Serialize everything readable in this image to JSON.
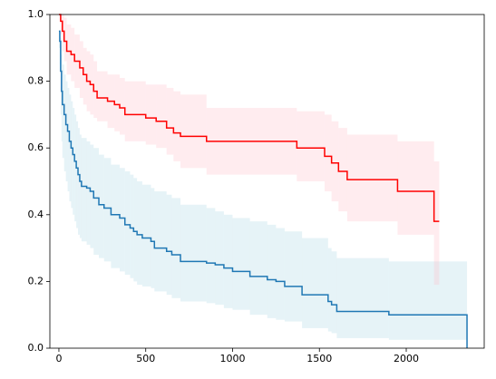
{
  "chart_data": {
    "type": "step",
    "xlim": [
      -52,
      2449
    ],
    "ylim": [
      0,
      1
    ],
    "xticks": [
      0,
      500,
      1000,
      1500,
      2000
    ],
    "yticks": [
      {
        "value": 0,
        "label": "0.0"
      },
      0.2,
      0.4,
      0.6,
      0.8,
      {
        "value": 1,
        "label": "1.0"
      }
    ],
    "series": [
      {
        "color": "#1f77b4",
        "band_color": "#add8e6",
        "x": [
          0,
          5,
          10,
          15,
          20,
          30,
          40,
          50,
          60,
          70,
          80,
          90,
          100,
          110,
          120,
          130,
          160,
          180,
          200,
          230,
          260,
          300,
          350,
          380,
          410,
          430,
          450,
          480,
          530,
          550,
          620,
          650,
          700,
          850,
          900,
          950,
          1000,
          1100,
          1200,
          1250,
          1300,
          1400,
          1550,
          1570,
          1600,
          1900,
          2350
        ],
        "values": [
          0.95,
          0.92,
          0.83,
          0.77,
          0.73,
          0.7,
          0.67,
          0.65,
          0.62,
          0.6,
          0.58,
          0.56,
          0.54,
          0.52,
          0.5,
          0.485,
          0.48,
          0.47,
          0.45,
          0.43,
          0.42,
          0.4,
          0.39,
          0.37,
          0.36,
          0.35,
          0.34,
          0.33,
          0.32,
          0.3,
          0.29,
          0.28,
          0.26,
          0.255,
          0.25,
          0.24,
          0.23,
          0.215,
          0.205,
          0.2,
          0.185,
          0.16,
          0.14,
          0.13,
          0.11,
          0.1,
          0
        ],
        "upper": [
          0.95,
          0.95,
          0.93,
          0.88,
          0.85,
          0.82,
          0.8,
          0.78,
          0.76,
          0.74,
          0.72,
          0.7,
          0.68,
          0.66,
          0.64,
          0.63,
          0.62,
          0.61,
          0.6,
          0.58,
          0.57,
          0.55,
          0.54,
          0.53,
          0.52,
          0.51,
          0.5,
          0.49,
          0.48,
          0.47,
          0.46,
          0.45,
          0.43,
          0.42,
          0.41,
          0.4,
          0.39,
          0.38,
          0.37,
          0.36,
          0.35,
          0.33,
          0.3,
          0.29,
          0.27,
          0.26,
          0.245
        ],
        "lower": [
          0.9,
          0.85,
          0.7,
          0.62,
          0.57,
          0.53,
          0.5,
          0.47,
          0.44,
          0.42,
          0.4,
          0.38,
          0.36,
          0.34,
          0.33,
          0.32,
          0.31,
          0.3,
          0.28,
          0.27,
          0.26,
          0.24,
          0.23,
          0.22,
          0.21,
          0.2,
          0.19,
          0.185,
          0.18,
          0.17,
          0.16,
          0.15,
          0.14,
          0.135,
          0.13,
          0.12,
          0.115,
          0.1,
          0.09,
          0.085,
          0.08,
          0.06,
          0.05,
          0.045,
          0.03,
          0.025,
          0
        ]
      },
      {
        "color": "#ff0000",
        "band_color": "#ffc0cb",
        "x": [
          0,
          10,
          20,
          30,
          45,
          70,
          90,
          120,
          140,
          160,
          180,
          200,
          220,
          280,
          320,
          350,
          380,
          500,
          560,
          620,
          660,
          700,
          850,
          1370,
          1530,
          1570,
          1610,
          1660,
          1950,
          2160,
          2190
        ],
        "values": [
          1.0,
          0.98,
          0.95,
          0.92,
          0.89,
          0.88,
          0.86,
          0.84,
          0.82,
          0.8,
          0.79,
          0.77,
          0.75,
          0.74,
          0.73,
          0.72,
          0.7,
          0.69,
          0.68,
          0.66,
          0.645,
          0.635,
          0.62,
          0.6,
          0.575,
          0.555,
          0.53,
          0.505,
          0.47,
          0.38,
          0.38
        ],
        "upper": [
          1.0,
          1.0,
          1.0,
          0.99,
          0.97,
          0.96,
          0.94,
          0.92,
          0.9,
          0.89,
          0.88,
          0.86,
          0.83,
          0.82,
          0.82,
          0.81,
          0.8,
          0.79,
          0.79,
          0.78,
          0.77,
          0.76,
          0.72,
          0.71,
          0.7,
          0.68,
          0.66,
          0.64,
          0.62,
          0.56,
          0.56
        ],
        "lower": [
          1.0,
          0.94,
          0.89,
          0.86,
          0.82,
          0.8,
          0.78,
          0.75,
          0.73,
          0.71,
          0.7,
          0.69,
          0.68,
          0.66,
          0.65,
          0.64,
          0.62,
          0.61,
          0.6,
          0.58,
          0.56,
          0.54,
          0.52,
          0.5,
          0.47,
          0.44,
          0.41,
          0.38,
          0.34,
          0.19,
          0.19
        ]
      }
    ]
  }
}
